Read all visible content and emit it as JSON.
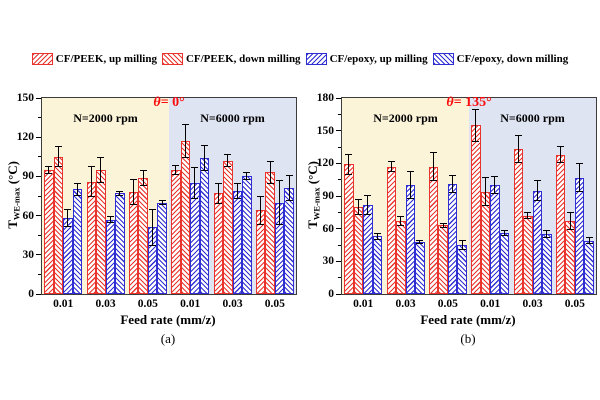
{
  "colors": {
    "red": "#e8342c",
    "blue": "#2e2ed2",
    "region_2000_bg": "#fcf4d9",
    "region_6000_bg": "#dfe4f3",
    "annotation_red": "#fb0d0d",
    "axis": "#3c3c3c",
    "error_bar": "#000000"
  },
  "legend": {
    "items": [
      {
        "label": "CF/PEEK, up milling",
        "color": "#e8342c",
        "hatch": "up",
        "icon": "red-forward-hatch-swatch"
      },
      {
        "label": "CF/PEEK, down milling",
        "color": "#e8342c",
        "hatch": "down",
        "icon": "red-backward-hatch-swatch"
      },
      {
        "label": "CF/epoxy, up milling",
        "color": "#2e2ed2",
        "hatch": "up",
        "icon": "blue-forward-hatch-swatch"
      },
      {
        "label": "CF/epoxy, down milling",
        "color": "#2e2ed2",
        "hatch": "down",
        "icon": "blue-backward-hatch-swatch"
      }
    ]
  },
  "chart_data": [
    {
      "type": "bar",
      "panel": "(a)",
      "annotation": {
        "theta": "θ=",
        "angle": " 0°"
      },
      "regions": [
        {
          "label": "N=2000 rpm"
        },
        {
          "label": "N=6000 rpm"
        }
      ],
      "xlabel": "Feed rate (mm/z)",
      "ylabel": {
        "t": "T",
        "sub": "WE-max",
        "unit": " (°C)"
      },
      "ylim": [
        0,
        150
      ],
      "ytick_major": 30,
      "ytick_minor": 15,
      "grid": false,
      "categories": [
        "0.01",
        "0.03",
        "0.05",
        "0.01",
        "0.03",
        "0.05"
      ],
      "series": [
        {
          "name": "CF/PEEK, up milling",
          "color": "#e8342c",
          "hatch": "up",
          "values": [
            95,
            86,
            78,
            95,
            77,
            64
          ],
          "errors": [
            3,
            12,
            10,
            4,
            8,
            11
          ]
        },
        {
          "name": "CF/PEEK, down milling",
          "color": "#e8342c",
          "hatch": "down",
          "values": [
            105,
            95,
            89,
            117,
            102,
            93
          ],
          "errors": [
            8,
            10,
            6,
            13,
            5,
            9
          ]
        },
        {
          "name": "CF/epoxy, up milling",
          "color": "#2e2ed2",
          "hatch": "up",
          "values": [
            58,
            57,
            51,
            85,
            79,
            70
          ],
          "errors": [
            7,
            3,
            14,
            12,
            6,
            17
          ]
        },
        {
          "name": "CF/epoxy, down milling",
          "color": "#2e2ed2",
          "hatch": "down",
          "values": [
            80,
            77,
            70,
            104,
            90,
            81
          ],
          "errors": [
            5,
            2,
            2,
            10,
            3,
            10
          ]
        }
      ]
    },
    {
      "type": "bar",
      "panel": "(b)",
      "annotation": {
        "theta": "θ=",
        "angle": " 135°"
      },
      "regions": [
        {
          "label": "N=2000 rpm"
        },
        {
          "label": "N=6000 rpm"
        }
      ],
      "xlabel": "Feed rate (mm/z)",
      "ylabel": {
        "t": "T",
        "sub": "WE-max",
        "unit": " (°C)"
      },
      "ylim": [
        0,
        180
      ],
      "ytick_major": 30,
      "ytick_minor": 15,
      "grid": false,
      "categories": [
        "0.01",
        "0.03",
        "0.05",
        "0.01",
        "0.03",
        "0.05"
      ],
      "series": [
        {
          "name": "CF/PEEK, up milling",
          "color": "#e8342c",
          "hatch": "up",
          "values": [
            119,
            117,
            117,
            155,
            133,
            128
          ],
          "errors": [
            10,
            5,
            13,
            15,
            13,
            8
          ]
        },
        {
          "name": "CF/PEEK, down milling",
          "color": "#e8342c",
          "hatch": "down",
          "values": [
            80,
            67,
            63,
            94,
            72,
            67
          ],
          "errors": [
            7,
            5,
            2,
            13,
            3,
            8
          ]
        },
        {
          "name": "CF/epoxy, up milling",
          "color": "#2e2ed2",
          "hatch": "up",
          "values": [
            82,
            100,
            101,
            100,
            95,
            107
          ],
          "errors": [
            9,
            13,
            8,
            8,
            10,
            13
          ]
        },
        {
          "name": "CF/epoxy, down milling",
          "color": "#2e2ed2",
          "hatch": "down",
          "values": [
            53,
            48,
            45,
            56,
            55,
            49
          ],
          "errors": [
            3,
            2,
            5,
            3,
            4,
            3
          ]
        }
      ]
    }
  ]
}
